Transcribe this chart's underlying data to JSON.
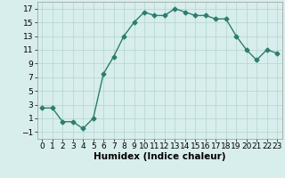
{
  "x": [
    0,
    1,
    2,
    3,
    4,
    5,
    6,
    7,
    8,
    9,
    10,
    11,
    12,
    13,
    14,
    15,
    16,
    17,
    18,
    19,
    20,
    21,
    22,
    23
  ],
  "y": [
    2.5,
    2.5,
    0.5,
    0.5,
    -0.5,
    1.0,
    7.5,
    10.0,
    13.0,
    15.0,
    16.5,
    16.0,
    16.0,
    17.0,
    16.5,
    16.0,
    16.0,
    15.5,
    15.5,
    13.0,
    11.0,
    9.5,
    11.0,
    10.5
  ],
  "line_color": "#2d7d6e",
  "marker": "D",
  "marker_size": 2.5,
  "line_width": 1.0,
  "bg_color": "#d8eeec",
  "grid_color": "#b8d8d4",
  "xlabel": "Humidex (Indice chaleur)",
  "xlabel_fontsize": 7.5,
  "tick_fontsize": 6.5,
  "xlim": [
    -0.5,
    23.5
  ],
  "ylim": [
    -2,
    18
  ],
  "yticks": [
    -1,
    1,
    3,
    5,
    7,
    9,
    11,
    13,
    15,
    17
  ],
  "xticks": [
    0,
    1,
    2,
    3,
    4,
    5,
    6,
    7,
    8,
    9,
    10,
    11,
    12,
    13,
    14,
    15,
    16,
    17,
    18,
    19,
    20,
    21,
    22,
    23
  ]
}
